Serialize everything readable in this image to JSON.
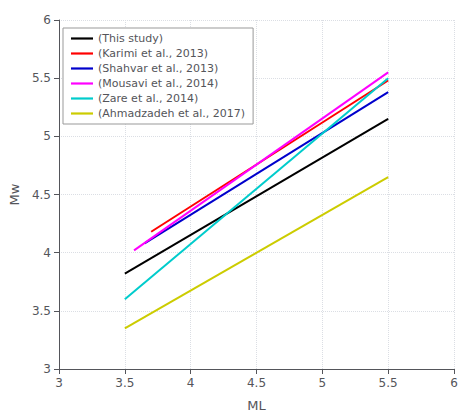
{
  "chart_data": {
    "type": "line",
    "xlabel": "ML",
    "ylabel": "Mw",
    "xlim": [
      3,
      6
    ],
    "ylim": [
      3,
      6
    ],
    "xticks": [
      3,
      3.5,
      4,
      4.5,
      5,
      5.5,
      6
    ],
    "yticks": [
      3,
      3.5,
      4,
      4.5,
      5,
      5.5,
      6
    ],
    "grid": true,
    "legend": "upper left",
    "series": [
      {
        "name": "(This study)",
        "color": "#000000",
        "x": [
          3.5,
          5.5
        ],
        "values": [
          3.82,
          5.15
        ]
      },
      {
        "name": "(Karimi et al., 2013)",
        "color": "#ff0000",
        "x": [
          3.7,
          5.5
        ],
        "values": [
          4.18,
          5.48
        ]
      },
      {
        "name": "(Shahvar et al., 2013)",
        "color": "#0000cc",
        "x": [
          3.65,
          5.5
        ],
        "values": [
          4.08,
          5.38
        ]
      },
      {
        "name": "(Mousavi et al., 2014)",
        "color": "#ff00ff",
        "x": [
          3.57,
          5.5
        ],
        "values": [
          4.02,
          5.55
        ]
      },
      {
        "name": "(Zare et al., 2014)",
        "color": "#00cccc",
        "x": [
          3.5,
          5.5
        ],
        "values": [
          3.6,
          5.5
        ]
      },
      {
        "name": "(Ahmadzadeh et al., 2017)",
        "color": "#cccc00",
        "x": [
          3.5,
          5.5
        ],
        "values": [
          3.35,
          4.65
        ]
      }
    ]
  }
}
